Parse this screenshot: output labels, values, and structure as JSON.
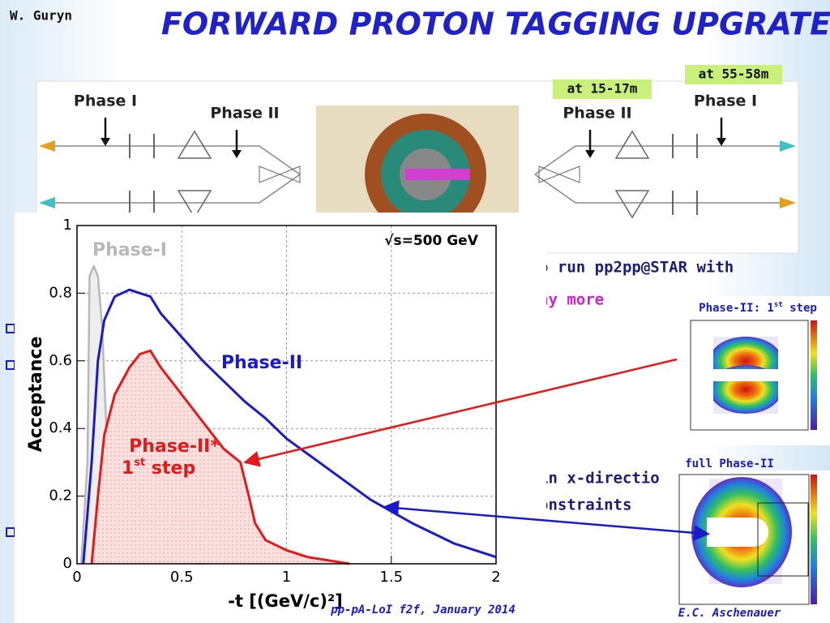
{
  "header": {
    "author": "W. Guryn",
    "title": "FORWARD PROTON TAGGING UPGRATE"
  },
  "diagram": {
    "labels": [
      "Phase I",
      "Phase II",
      "Phase II",
      "Phase I"
    ],
    "locations": [
      "at 15-17m",
      "at 55-58m"
    ]
  },
  "body_text": [
    "o run pp2pp@STAR with",
    "ny more",
    "in x-direction",
    "onstraints"
  ],
  "insets": [
    {
      "title": {
        "pre": "Phase-II: 1",
        "sup": "st",
        "post": " step"
      }
    },
    {
      "title": "full Phase-II"
    }
  ],
  "chart_data": {
    "type": "line",
    "x_label": "-t [(GeV/c)²]",
    "y_label": "Acceptance",
    "xlim": [
      0,
      2
    ],
    "ylim": [
      0,
      1
    ],
    "xticks": [
      0,
      0.5,
      1,
      1.5,
      2
    ],
    "yticks": [
      0,
      0.2,
      0.4,
      0.6,
      0.8,
      1
    ],
    "grid": true,
    "annotations": {
      "energy": "√s=500 GeV",
      "phase1": "Phase-I",
      "phase2": "Phase-II",
      "phase2star": "Phase-II*",
      "step": {
        "num": "1",
        "sup": "st",
        "rest": " step"
      }
    },
    "series": [
      {
        "name": "Phase-I",
        "color": "#b8b8b8",
        "fill": "#eeeeee",
        "x": [
          0.02,
          0.05,
          0.06,
          0.08,
          0.1,
          0.12,
          0.14,
          0.16,
          0.2,
          0.3,
          0.4,
          0.5,
          0.6
        ],
        "values": [
          0,
          0.3,
          0.85,
          0.88,
          0.85,
          0.7,
          0.4,
          0.2,
          0.08,
          0.03,
          0.01,
          0.005,
          0
        ]
      },
      {
        "name": "Phase-II",
        "color": "#1a1acc",
        "x": [
          0.03,
          0.07,
          0.1,
          0.13,
          0.18,
          0.25,
          0.3,
          0.35,
          0.4,
          0.5,
          0.6,
          0.7,
          0.8,
          0.9,
          1.0,
          1.2,
          1.4,
          1.6,
          1.8,
          2.0
        ],
        "values": [
          0,
          0.3,
          0.6,
          0.72,
          0.79,
          0.81,
          0.8,
          0.79,
          0.74,
          0.67,
          0.6,
          0.54,
          0.48,
          0.43,
          0.37,
          0.28,
          0.19,
          0.12,
          0.06,
          0.02
        ]
      },
      {
        "name": "Phase-II* 1st step",
        "color": "#e21a1a",
        "fill": "#fbe0e0",
        "x": [
          0.07,
          0.1,
          0.13,
          0.18,
          0.25,
          0.3,
          0.35,
          0.4,
          0.5,
          0.6,
          0.7,
          0.78,
          0.82,
          0.85,
          0.9,
          1.0,
          1.1,
          1.2,
          1.3
        ],
        "values": [
          0,
          0.2,
          0.38,
          0.5,
          0.58,
          0.62,
          0.63,
          0.58,
          0.5,
          0.42,
          0.34,
          0.3,
          0.2,
          0.12,
          0.07,
          0.04,
          0.02,
          0.01,
          0
        ]
      }
    ]
  },
  "footer": {
    "left": "pp-pA-LoI f2f, January 2014",
    "right": "E.C. Aschenauer"
  }
}
